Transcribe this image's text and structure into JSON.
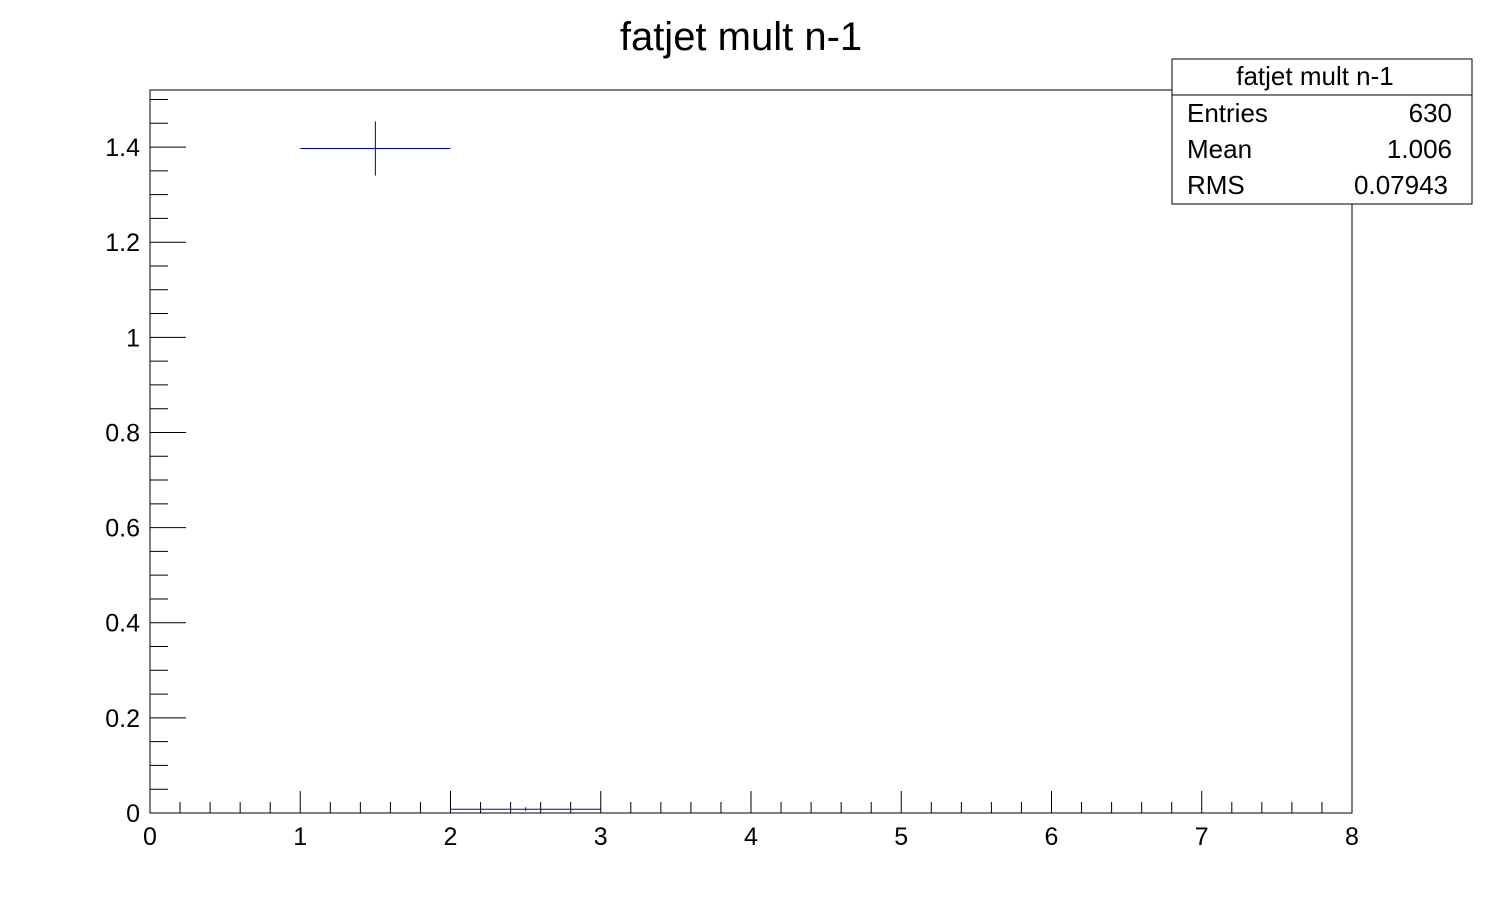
{
  "chart_data": {
    "type": "histogram",
    "title": "fatjet mult n-1",
    "xlabel": "",
    "ylabel": "",
    "xlim": [
      0,
      8
    ],
    "ylim": [
      0,
      1.52
    ],
    "x_ticks": [
      0,
      1,
      2,
      3,
      4,
      5,
      6,
      7,
      8
    ],
    "y_ticks": [
      0,
      0.2,
      0.4,
      0.6,
      0.8,
      1,
      1.2,
      1.4
    ],
    "x_tick_labels": [
      "0",
      "1",
      "2",
      "3",
      "4",
      "5",
      "6",
      "7",
      "8"
    ],
    "y_tick_labels": [
      "0",
      "0.2",
      "0.4",
      "0.6",
      "0.8",
      "1",
      "1.2",
      "1.4"
    ],
    "grid": false,
    "line_color": "#000099",
    "bins": [
      {
        "x_low": 1,
        "x_high": 2,
        "value": 1.397,
        "error": 0.057
      },
      {
        "x_low": 2,
        "x_high": 3,
        "value": 0.008,
        "error": 0.004
      }
    ],
    "stats_box": {
      "title": "fatjet mult n-1",
      "placement": "top-right",
      "rows": [
        {
          "label": "Entries",
          "value": "630"
        },
        {
          "label": "Mean",
          "value": "1.006"
        },
        {
          "label": "RMS",
          "value": "0.07943"
        }
      ]
    }
  }
}
